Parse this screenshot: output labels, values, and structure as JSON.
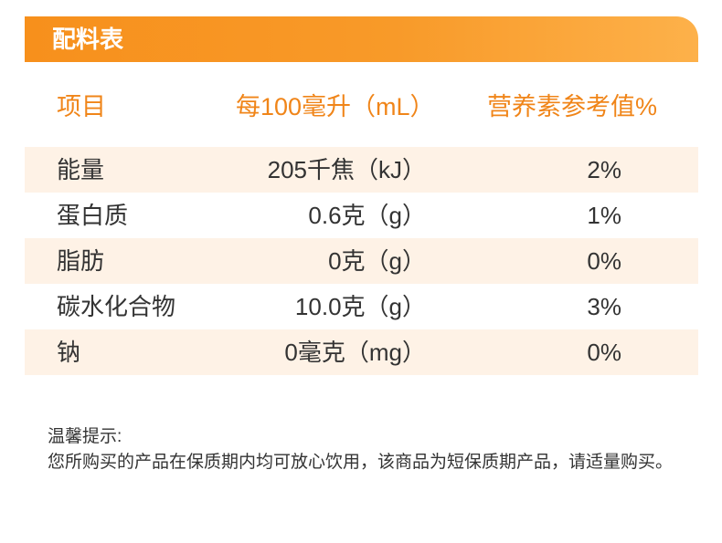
{
  "header": {
    "title": "配料表"
  },
  "table": {
    "columns": [
      "项目",
      "每100毫升（mL）",
      "营养素参考值%"
    ],
    "rows": [
      {
        "item": "能量",
        "per_100ml": "205千焦（kJ）",
        "nrv": "2%"
      },
      {
        "item": "蛋白质",
        "per_100ml": "0.6克（g）",
        "nrv": "1%"
      },
      {
        "item": "脂肪",
        "per_100ml": "0克（g）",
        "nrv": "0%"
      },
      {
        "item": "碳水化合物",
        "per_100ml": "10.0克（g）",
        "nrv": "3%"
      },
      {
        "item": "钠",
        "per_100ml": "0毫克（mg）",
        "nrv": "0%"
      }
    ]
  },
  "note": {
    "title": "温馨提示:",
    "text": "您所购买的产品在保质期内均可放心饮用，该商品为短保质期产品，请适量购买。"
  },
  "colors": {
    "accent": "#F7901C",
    "accent_light": "#FDB14A",
    "header_text": "#F08519",
    "row_alt": "#FEF2E6",
    "body_text": "#333333"
  }
}
